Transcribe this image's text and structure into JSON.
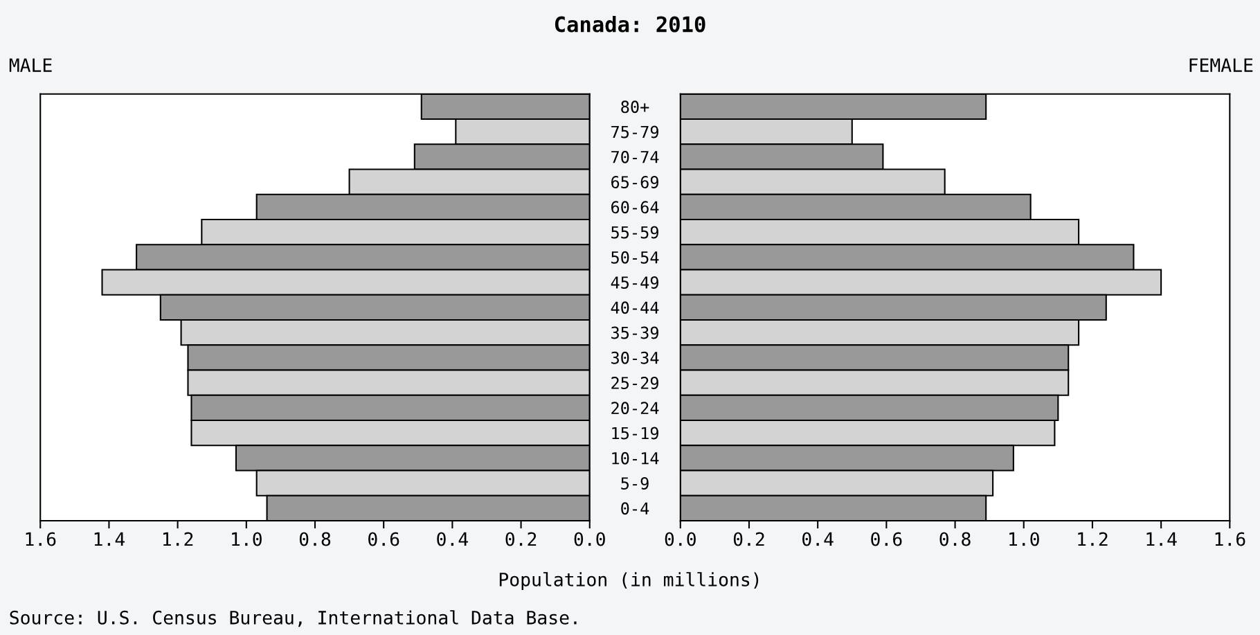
{
  "chart_data": [
    {
      "type": "bar",
      "orientation": "horizontal",
      "title": "Canada: 2010",
      "xlabel": "Population (in millions)",
      "categories": [
        "80+",
        "75-79",
        "70-74",
        "65-69",
        "60-64",
        "55-59",
        "50-54",
        "45-49",
        "40-44",
        "35-39",
        "30-34",
        "25-29",
        "20-24",
        "15-19",
        "10-14",
        "5-9",
        "0-4"
      ],
      "values": [
        0.49,
        0.39,
        0.51,
        0.7,
        0.97,
        1.13,
        1.32,
        1.42,
        1.25,
        1.19,
        1.17,
        1.17,
        1.16,
        1.16,
        1.03,
        0.97,
        0.94
      ],
      "colors": [
        "#999999",
        "#d3d3d3",
        "#999999",
        "#d3d3d3",
        "#999999",
        "#d3d3d3",
        "#999999",
        "#d3d3d3",
        "#999999",
        "#d3d3d3",
        "#999999",
        "#d3d3d3",
        "#999999",
        "#d3d3d3",
        "#999999",
        "#d3d3d3",
        "#999999"
      ],
      "xlim": [
        1.6,
        0
      ],
      "xticks": [
        {
          "value": 1.6,
          "label": "1.6"
        },
        {
          "value": 1.4,
          "label": "1.4"
        },
        {
          "value": 1.2,
          "label": "1.2"
        },
        {
          "value": 1.0,
          "label": "1.0"
        },
        {
          "value": 0.8,
          "label": "0.8"
        },
        {
          "value": 0.6,
          "label": "0.6"
        },
        {
          "value": 0.4,
          "label": "0.4"
        },
        {
          "value": 0.2,
          "label": "0.2"
        },
        {
          "value": 0,
          "label": "0.0"
        }
      ],
      "annotations": [
        "MALE",
        "Source: U.S. Census Bureau, International Data Base."
      ]
    },
    {
      "type": "bar",
      "orientation": "horizontal",
      "values": [
        0.89,
        0.5,
        0.59,
        0.77,
        1.02,
        1.16,
        1.32,
        1.4,
        1.24,
        1.16,
        1.13,
        1.13,
        1.1,
        1.09,
        0.97,
        0.91,
        0.89
      ],
      "colors": [
        "#999999",
        "#d3d3d3",
        "#999999",
        "#d3d3d3",
        "#999999",
        "#d3d3d3",
        "#999999",
        "#d3d3d3",
        "#999999",
        "#d3d3d3",
        "#999999",
        "#d3d3d3",
        "#999999",
        "#d3d3d3",
        "#999999",
        "#d3d3d3",
        "#999999"
      ],
      "xlim": [
        0,
        1.6
      ],
      "xticks": [
        {
          "value": 0,
          "label": "0.0"
        },
        {
          "value": 0.2,
          "label": "0.2"
        },
        {
          "value": 0.4,
          "label": "0.4"
        },
        {
          "value": 0.6,
          "label": "0.6"
        },
        {
          "value": 0.8,
          "label": "0.8"
        },
        {
          "value": 1.0,
          "label": "1.0"
        },
        {
          "value": 1.2,
          "label": "1.2"
        },
        {
          "value": 1.4,
          "label": "1.4"
        },
        {
          "value": 1.6,
          "label": "1.6"
        }
      ],
      "tick_labels": "x",
      "annotations": [
        "FEMALE"
      ]
    }
  ]
}
